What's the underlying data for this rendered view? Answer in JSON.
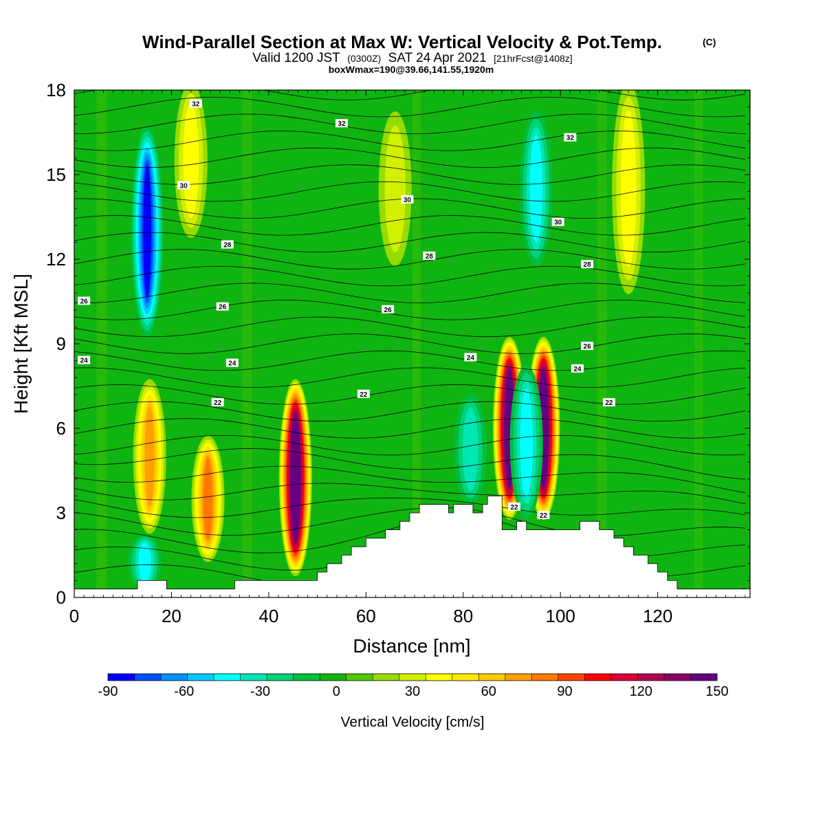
{
  "header": {
    "title": "Wind-Parallel Section at Max W: Vertical Velocity & Pot.Temp.",
    "copyright": "(C)",
    "valid_prefix": "Valid 1200 JST",
    "valid_zulu": "(0300Z)",
    "valid_date": "SAT 24 Apr 2021",
    "forecast_info": "[21hrFcst@1408z]",
    "box_info": "boxWmax=190@39.66,141.55,1920m"
  },
  "chart_data": {
    "type": "heatmap",
    "xlabel": "Distance [nm]",
    "ylabel": "Height [Kft MSL]",
    "xlim": [
      0,
      139
    ],
    "ylim": [
      0,
      18
    ],
    "xticks": [
      0,
      20,
      40,
      60,
      80,
      100,
      120
    ],
    "yticks": [
      0,
      3,
      6,
      9,
      12,
      15,
      18
    ],
    "x_tick_labels": [
      "0",
      "20",
      "40",
      "60",
      "80",
      "100",
      "120"
    ],
    "y_tick_labels": [
      "0",
      "3",
      "6",
      "9",
      "12",
      "15",
      "18"
    ],
    "colorbar": {
      "label": "Vertical Velocity [cm/s]",
      "min": -90,
      "max": 150,
      "step": 10,
      "tick_labels": [
        "-90",
        "-60",
        "-30",
        "0",
        "30",
        "60",
        "90",
        "120",
        "150"
      ],
      "tick_values": [
        -90,
        -60,
        -30,
        0,
        30,
        60,
        90,
        120,
        150
      ],
      "colors": [
        "#0000ff",
        "#0050ff",
        "#0090ff",
        "#00c8ff",
        "#00ffff",
        "#00e6b4",
        "#00d278",
        "#00be3c",
        "#10b410",
        "#50c800",
        "#96dc00",
        "#d2f000",
        "#ffff00",
        "#ffe600",
        "#ffc800",
        "#ffa000",
        "#ff7800",
        "#ff4600",
        "#ff0000",
        "#dc0032",
        "#b40050",
        "#8c0064",
        "#640082"
      ]
    },
    "updraft_cores": [
      {
        "x": 15.5,
        "z_bottom": 2.5,
        "z_top": 7.5,
        "w_max": 60
      },
      {
        "x": 27.5,
        "z_bottom": 1.5,
        "z_top": 5.5,
        "w_max": 75
      },
      {
        "x": 45.5,
        "z_bottom": 1.0,
        "z_top": 7.5,
        "w_max": 150
      },
      {
        "x": 89.5,
        "z_bottom": 3.0,
        "z_top": 9.0,
        "w_max": 150
      },
      {
        "x": 96.5,
        "z_bottom": 3.0,
        "z_top": 9.0,
        "w_max": 150
      },
      {
        "x": 24.0,
        "z_bottom": 13.0,
        "z_top": 18.0,
        "w_max": 30
      },
      {
        "x": 114.0,
        "z_bottom": 11.0,
        "z_top": 18.0,
        "w_max": 35
      },
      {
        "x": 66.0,
        "z_bottom": 12.0,
        "z_top": 17.0,
        "w_max": 25
      }
    ],
    "downdraft_cores": [
      {
        "x": 15.0,
        "z_bottom": 9.5,
        "z_top": 16.5,
        "w_min": -85
      },
      {
        "x": 14.5,
        "z_bottom": 0.5,
        "z_top": 2.0,
        "w_min": -40
      },
      {
        "x": 93.0,
        "z_bottom": 3.0,
        "z_top": 8.0,
        "w_min": -40
      },
      {
        "x": 95.0,
        "z_bottom": 12.0,
        "z_top": 17.0,
        "w_min": -40
      },
      {
        "x": 81.5,
        "z_bottom": 3.5,
        "z_top": 7.0,
        "w_min": -35
      }
    ],
    "contour_labels": [
      {
        "x": 25.0,
        "y": 17.5,
        "text": "32"
      },
      {
        "x": 55.0,
        "y": 16.8,
        "text": "32"
      },
      {
        "x": 102.0,
        "y": 16.3,
        "text": "32"
      },
      {
        "x": 22.5,
        "y": 14.6,
        "text": "30"
      },
      {
        "x": 68.5,
        "y": 14.1,
        "text": "30"
      },
      {
        "x": 99.5,
        "y": 13.3,
        "text": "30"
      },
      {
        "x": 31.5,
        "y": 12.5,
        "text": "28"
      },
      {
        "x": 73.0,
        "y": 12.1,
        "text": "28"
      },
      {
        "x": 105.5,
        "y": 11.8,
        "text": "28"
      },
      {
        "x": 2.0,
        "y": 10.5,
        "text": "26"
      },
      {
        "x": 30.5,
        "y": 10.3,
        "text": "26"
      },
      {
        "x": 64.5,
        "y": 10.2,
        "text": "26"
      },
      {
        "x": 105.5,
        "y": 8.9,
        "text": "26"
      },
      {
        "x": 2.0,
        "y": 8.4,
        "text": "24"
      },
      {
        "x": 32.5,
        "y": 8.3,
        "text": "24"
      },
      {
        "x": 81.5,
        "y": 8.5,
        "text": "24"
      },
      {
        "x": 103.5,
        "y": 8.1,
        "text": "24"
      },
      {
        "x": 29.5,
        "y": 6.9,
        "text": "22"
      },
      {
        "x": 59.5,
        "y": 7.2,
        "text": "22"
      },
      {
        "x": 110.0,
        "y": 6.9,
        "text": "22"
      },
      {
        "x": 90.5,
        "y": 3.2,
        "text": "22"
      },
      {
        "x": 96.5,
        "y": 2.9,
        "text": "22"
      }
    ],
    "terrain": {
      "x": [
        0,
        13,
        13,
        19,
        19,
        33,
        33,
        40,
        40,
        50,
        50,
        52,
        52,
        55,
        55,
        57,
        57,
        60,
        60,
        64,
        64,
        67,
        67,
        69,
        69,
        71,
        71,
        77,
        77,
        78,
        78,
        82,
        82,
        84,
        84,
        85,
        85,
        88,
        88,
        91,
        91,
        93,
        93,
        104,
        104,
        108,
        108,
        111,
        111,
        113,
        113,
        115,
        115,
        118,
        118,
        120,
        120,
        122,
        122,
        124,
        124,
        125,
        125,
        129,
        129,
        139
      ],
      "z": [
        0.3,
        0.3,
        0.6,
        0.6,
        0.3,
        0.3,
        0.6,
        0.6,
        0.6,
        0.6,
        0.9,
        0.9,
        1.2,
        1.2,
        1.5,
        1.5,
        1.8,
        1.8,
        2.1,
        2.1,
        2.4,
        2.4,
        2.7,
        2.7,
        3.0,
        3.0,
        3.3,
        3.3,
        3.0,
        3.0,
        3.3,
        3.3,
        3.0,
        3.0,
        3.3,
        3.3,
        3.6,
        3.6,
        2.4,
        2.4,
        2.7,
        2.7,
        2.4,
        2.4,
        2.7,
        2.7,
        2.4,
        2.4,
        2.1,
        2.1,
        1.8,
        1.8,
        1.5,
        1.5,
        1.2,
        1.2,
        0.9,
        0.9,
        0.6,
        0.6,
        0.3,
        0.3,
        0.3,
        0.3,
        0.3,
        0.3
      ]
    }
  }
}
